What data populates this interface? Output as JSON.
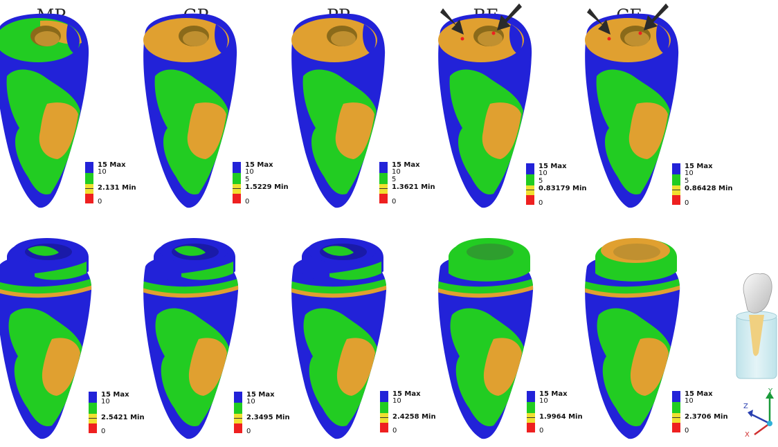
{
  "columns": [
    {
      "id": "MP",
      "title": "MP"
    },
    {
      "id": "GP",
      "title": "GP"
    },
    {
      "id": "PP",
      "title": "PP"
    },
    {
      "id": "RE",
      "title": "RE"
    },
    {
      "id": "CE",
      "title": "CE"
    }
  ],
  "legend_common": {
    "max": "15 Max",
    "v10": "10",
    "v5": "5",
    "zero": "0"
  },
  "top_row_min": [
    "2.131 Min",
    "1.5229 Min",
    "1.3621 Min",
    "0.83179 Min",
    "0.86428 Min"
  ],
  "bottom_row_min": [
    "2.5421 Min",
    "2.3495 Min",
    "2.4258 Min",
    "1.9964 Min",
    "2.3706 Min"
  ],
  "axes": {
    "x": "X",
    "y": "Y",
    "z": "Z"
  },
  "colors": {
    "blue": "#2222d8",
    "green": "#22cc22",
    "orange": "#e0a030",
    "yellow": "#f0e030",
    "red": "#ee2020",
    "background": "#ffffff"
  }
}
